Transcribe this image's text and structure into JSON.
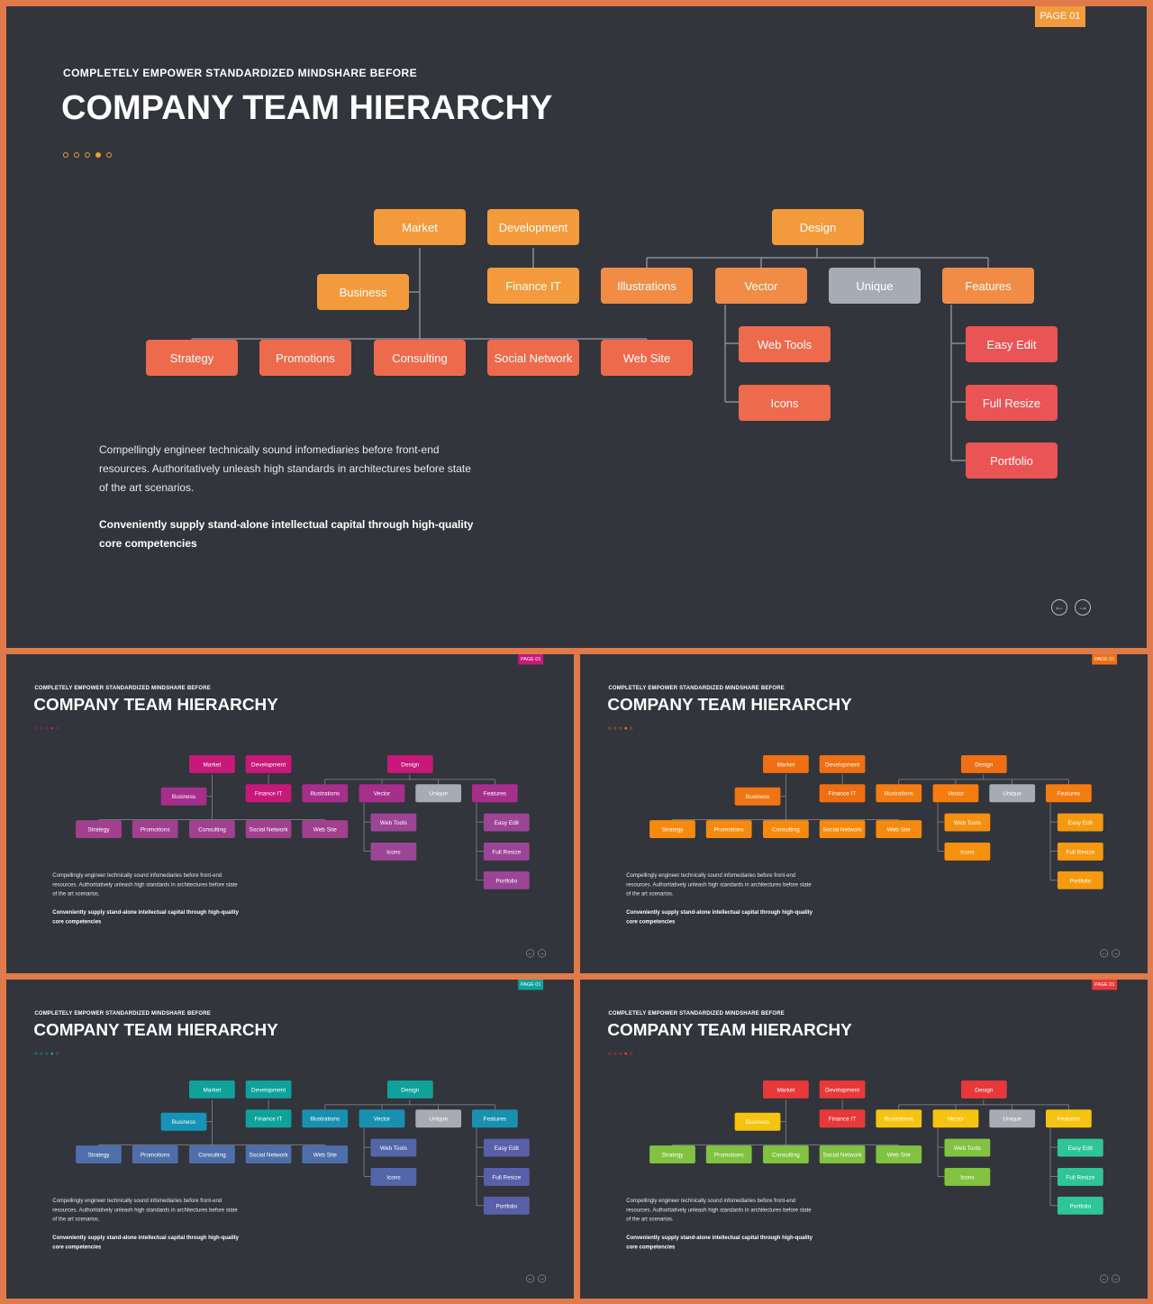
{
  "slide": {
    "badge": "PAGE 01",
    "subtitle": "COMPLETELY  EMPOWER  STANDARDIZED  MINDSHARE  BEFORE",
    "title": "COMPANY TEAM HIERARCHY",
    "paragraph": "Compellingly engineer technically sound infomediaries before front-end resources. Authoritatively unleash high standards in architectures before state of the art scenarios.",
    "bold_paragraph": "Conveniently supply stand-alone  intellectual  capital  through  high-quality core competencies",
    "nav_prev_icon": "arrow-left-icon",
    "nav_next_icon": "arrow-right-icon"
  },
  "nodes": [
    {
      "id": "market",
      "label": "Market",
      "group": "top"
    },
    {
      "id": "development",
      "label": "Development",
      "group": "top"
    },
    {
      "id": "design",
      "label": "Design",
      "group": "top"
    },
    {
      "id": "business",
      "label": "Business",
      "group": "business"
    },
    {
      "id": "finance-it",
      "label": "Finance IT",
      "group": "financeit"
    },
    {
      "id": "illustrations",
      "label": "Illustrations",
      "group": "mid"
    },
    {
      "id": "vector",
      "label": "Vector",
      "group": "mid"
    },
    {
      "id": "unique",
      "label": "Unique",
      "group": "unique"
    },
    {
      "id": "features",
      "label": "Features",
      "group": "mid"
    },
    {
      "id": "strategy",
      "label": "Strategy",
      "group": "bottom"
    },
    {
      "id": "promotions",
      "label": "Promotions",
      "group": "bottom"
    },
    {
      "id": "consulting",
      "label": "Consulting",
      "group": "bottom"
    },
    {
      "id": "social-network",
      "label": "Social Network",
      "group": "bottom"
    },
    {
      "id": "web-site",
      "label": "Web Site",
      "group": "bottom"
    },
    {
      "id": "web-tools",
      "label": "Web Tools",
      "group": "vecchild"
    },
    {
      "id": "icons",
      "label": "Icons",
      "group": "vecchild"
    },
    {
      "id": "easy-edit",
      "label": "Easy Edit",
      "group": "featchild"
    },
    {
      "id": "full-resize",
      "label": "Full Resize",
      "group": "featchild"
    },
    {
      "id": "portfolio",
      "label": "Portfolio",
      "group": "featchild"
    }
  ],
  "themes": [
    {
      "badge": "#f39a3c",
      "dots": "#f39a3c",
      "top": "#f39a3c",
      "business": "#f39a3c",
      "financeit": "#f39a3c",
      "mid": "#f08c45",
      "unique": "#a7abb3",
      "bottom": "#ee6a4c",
      "vecchild": "#ee6a4c",
      "featchild": "#ea5454"
    },
    {
      "badge": "#c8187a",
      "dots": "#c8187a",
      "top": "#c8187a",
      "business": "#a52f8a",
      "financeit": "#c8187a",
      "mid": "#a52f8a",
      "unique": "#a7abb3",
      "bottom": "#a1408f",
      "vecchild": "#9c4597",
      "featchild": "#9c4597"
    },
    {
      "badge": "#ef6f12",
      "dots": "#ef6f12",
      "top": "#ef6f12",
      "business": "#f07412",
      "financeit": "#ef6f12",
      "mid": "#f47c10",
      "unique": "#a7abb3",
      "bottom": "#f58a0f",
      "vecchild": "#f6900f",
      "featchild": "#f6990f"
    },
    {
      "badge": "#0fa29a",
      "dots": "#0fa29a",
      "top": "#0fa29a",
      "business": "#1793b7",
      "financeit": "#0fa29a",
      "mid": "#1a90b0",
      "unique": "#a7abb3",
      "bottom": "#4f6fab",
      "vecchild": "#5466aa",
      "featchild": "#5a5fa9"
    },
    {
      "badge": "#e8383a",
      "dots": "#e8383a",
      "top": "#e8383a",
      "business": "#f5c410",
      "financeit": "#e8383a",
      "mid": "#f5c410",
      "unique": "#a7abb3",
      "bottom": "#82c241",
      "vecchild": "#82c241",
      "featchild": "#2fc596"
    }
  ]
}
